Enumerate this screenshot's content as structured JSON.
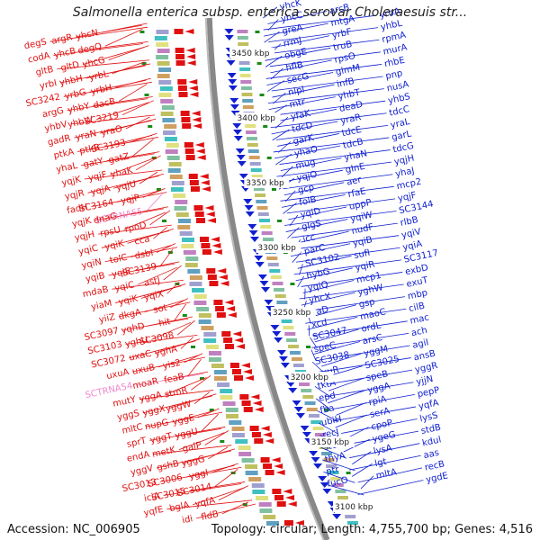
{
  "title": "Salmonella enterica subsp. enterica serovar Choleraesuis str...",
  "accession": "Accession: NC_006905",
  "topology": "Topology: circular; Length: 4,755,700 bp; Genes: 4,516",
  "kbp_markers": [
    "3450 kbp",
    "3400 kbp",
    "3350 kbp",
    "3300 kbp",
    "3250 kbp",
    "3200 kbp",
    "3150 kbp",
    "3100 kbp"
  ],
  "colors": {
    "left_strand": "#e01010",
    "right_strand": "#1020d0",
    "rna": "#ee88cc",
    "ring": "#888888",
    "tick": "#1a8a1a"
  },
  "left_genes": [
    "yhcN",
    "argR",
    "degS",
    "degQ",
    "yhcB",
    "codA",
    "yhcG",
    "gltD",
    "gltB",
    "yrbL",
    "yhbH",
    "yrbI",
    "yrbH",
    "yrbG",
    "SC3242",
    "dacB",
    "yhbY",
    "argG",
    "SC3219",
    "yhbW",
    "yhbV",
    "yraO",
    "yraN",
    "gadR",
    "SC3193",
    "ptkB",
    "ptkA",
    "gatZ",
    "gatY",
    "yhaL",
    "yhaK",
    "yqjF",
    "yqjK",
    "yqjU",
    "yqjA",
    "yqjR",
    "yqjP",
    "SC3164",
    "fadH",
    "SCTRNA55",
    "dnaG",
    "yqjK",
    "rpoD",
    "rpsU",
    "yqjH",
    "cca",
    "yqiK",
    "yqiC",
    "dsbI",
    "tolC",
    "yqiN",
    "SC3139",
    "yqiE",
    "yqiB",
    "astJ",
    "yqiC",
    "mdaB",
    "yqiX",
    "yqiK",
    "yiaM",
    "sot",
    "dkgA",
    "yiiZ",
    "hit",
    "yqhD",
    "SC3097",
    "SC3098",
    "yghU",
    "SC3103",
    "yghA",
    "uxaC",
    "SC3072",
    "yis2",
    "uxuB",
    "uxuA",
    "feaB",
    "moaR",
    "SCTRNA54",
    "stmR",
    "yggA",
    "mutY",
    "yggW",
    "yggX",
    "yggS",
    "yggE",
    "nupG",
    "mltC",
    "yggU",
    "yggT",
    "sprT",
    "galP",
    "metK",
    "endA",
    "yggG",
    "gshB",
    "yggV",
    "yggI",
    "SC3006",
    "SC3013",
    "SC3014",
    "SC3015",
    "iciA",
    "yqfA",
    "bglA",
    "yqfE",
    "fldB",
    "idi"
  ],
  "right_genes": [
    "yhcK",
    "arcB",
    "yrbA",
    "yhcC",
    "mtgA",
    "yhbL",
    "greA",
    "yrbF",
    "rpmA",
    "rrmJ",
    "truB",
    "murA",
    "obgE",
    "rpsO",
    "rhbE",
    "hflB",
    "glmM",
    "pnp",
    "secG",
    "infB",
    "nusA",
    "nlpI",
    "yhbT",
    "yhbS",
    "mtr",
    "deaD",
    "tdcC",
    "yfaK",
    "yraR",
    "yraL",
    "tdcD",
    "tdcE",
    "garL",
    "garK",
    "tdcB",
    "tdcG",
    "yhaO",
    "yhaN",
    "yqjH",
    "mug",
    "gInE",
    "yhaJ",
    "yqjO",
    "aer",
    "mcp2",
    "gcp",
    "rfaE",
    "yqjF",
    "folB",
    "uppP",
    "SC3144",
    "yqiD",
    "yqiW",
    "rlbB",
    "gIgS",
    "nudF",
    "yqiV",
    "icc",
    "yqiB",
    "yqiA",
    "parC",
    "sufI",
    "SC3117",
    "SC3102",
    "yqiR",
    "exbD",
    "hybG",
    "mcp1",
    "exuT",
    "yqiQ",
    "yghW",
    "mbp",
    "yhcX",
    "gsp",
    "cilB",
    "iraD",
    "maoC",
    "mac",
    "xcd",
    "ordL",
    "ach",
    "SC3047",
    "arsC",
    "agiI",
    "speC",
    "yggM",
    "ansB",
    "SC3038",
    "SC3025",
    "yggR",
    "uxuR",
    "speB",
    "yjjN",
    "tktA",
    "yggA",
    "pepP",
    "epd",
    "rpiA",
    "yqfA",
    "fba",
    "serA",
    "lysS",
    "ubiH",
    "cpoP",
    "stdB",
    "recJ",
    "ygeG",
    "kdul",
    "stdC",
    "lysA",
    "aas",
    "thyA",
    "lgt",
    "recB",
    "ptr",
    "mltA",
    "ygdE",
    "fucO"
  ]
}
